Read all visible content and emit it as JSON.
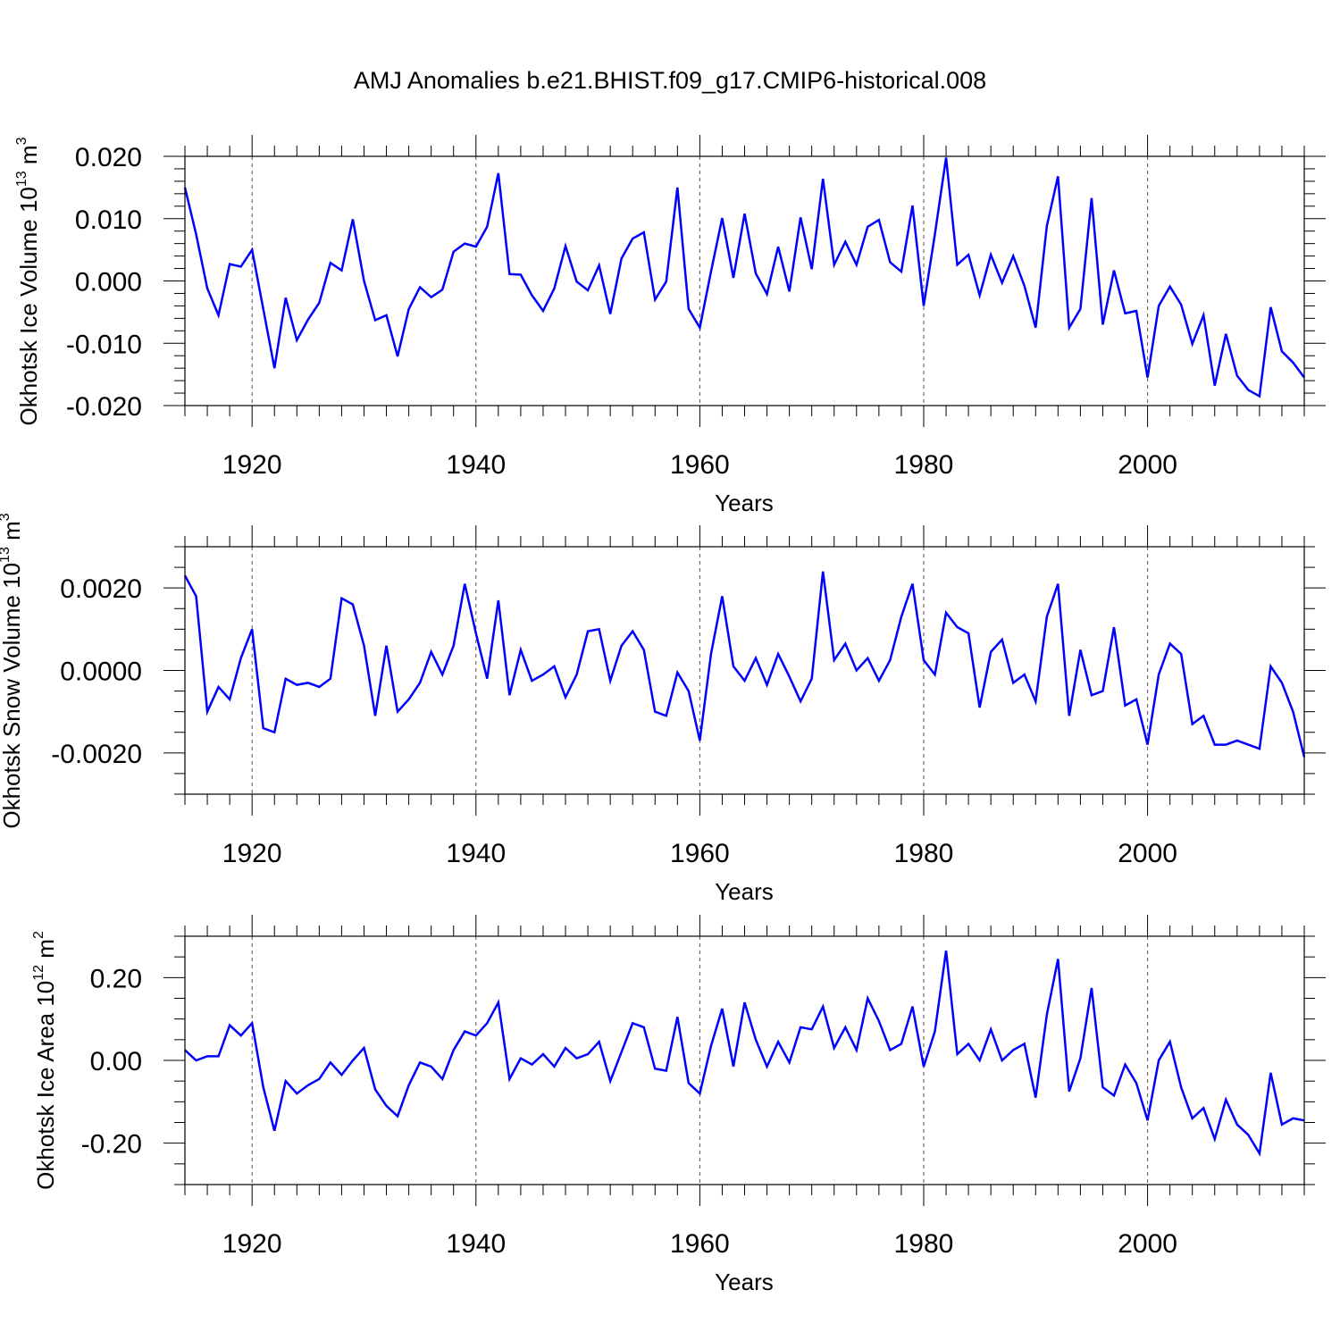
{
  "figure_title": "AMJ Anomalies b.e21.BHIST.f09_g17.CMIP6-historical.008",
  "line_color": "#0000ff",
  "chart_data": [
    {
      "type": "line",
      "name": "ice-volume",
      "ylabel_main": "Okhotsk Ice Volume 10",
      "ylabel_exp": "13",
      "ylabel_unit": " m",
      "ylabel_unit_exp": "3",
      "xlabel": "Years",
      "xlim": [
        1914,
        2014
      ],
      "ylim": [
        -0.02,
        0.02
      ],
      "x_ticks": [
        1920,
        1940,
        1960,
        1980,
        2000
      ],
      "x_tick_labels": [
        "1920",
        "1940",
        "1960",
        "1980",
        "2000"
      ],
      "y_ticks": [
        -0.02,
        -0.01,
        0.0,
        0.01,
        0.02
      ],
      "y_tick_labels": [
        "-0.020",
        "-0.010",
        "0.000",
        "0.010",
        "0.020"
      ],
      "y_minor_step": 0.002,
      "x_start": 1914,
      "values": [
        0.015,
        0.0075,
        -0.0012,
        -0.0055,
        0.0027,
        0.0023,
        0.005,
        -0.0045,
        -0.014,
        -0.0027,
        -0.0095,
        -0.0062,
        -0.0035,
        0.0029,
        0.0017,
        0.0099,
        0.0,
        -0.0063,
        -0.0055,
        -0.0121,
        -0.0045,
        -0.001,
        -0.0026,
        -0.0014,
        0.0047,
        0.006,
        0.0055,
        0.0087,
        0.0173,
        0.0011,
        0.001,
        -0.0023,
        -0.0048,
        -0.0012,
        0.0056,
        -0.0001,
        -0.0015,
        0.0025,
        -0.0053,
        0.0036,
        0.0068,
        0.0078,
        -0.003,
        -0.0001,
        0.015,
        -0.0045,
        -0.0075,
        0.0015,
        0.0101,
        0.0005,
        0.0108,
        0.0012,
        -0.0021,
        0.0055,
        -0.0017,
        0.0102,
        0.0019,
        0.0164,
        0.0026,
        0.0063,
        0.0026,
        0.0087,
        0.0098,
        0.003,
        0.0015,
        0.0121,
        -0.004,
        0.0075,
        0.0198,
        0.0026,
        0.0042,
        -0.0023,
        0.0042,
        -0.0003,
        0.004,
        -0.0008,
        -0.0075,
        0.0088,
        0.0168,
        -0.0075,
        -0.0045,
        0.0133,
        -0.007,
        0.0017,
        -0.0052,
        -0.0048,
        -0.0155,
        -0.004,
        -0.0009,
        -0.0038,
        -0.0101,
        -0.0055,
        -0.0168,
        -0.0085,
        -0.0152,
        -0.0175,
        -0.0185,
        -0.0042,
        -0.0113,
        -0.0131,
        -0.0155
      ]
    },
    {
      "type": "line",
      "name": "snow-volume",
      "ylabel_main": "Okhotsk Snow Volume 10",
      "ylabel_exp": "13",
      "ylabel_unit": " m",
      "ylabel_unit_exp": "3",
      "xlabel": "Years",
      "xlim": [
        1914,
        2014
      ],
      "ylim": [
        -0.003,
        0.003
      ],
      "x_ticks": [
        1920,
        1940,
        1960,
        1980,
        2000
      ],
      "x_tick_labels": [
        "1920",
        "1940",
        "1960",
        "1980",
        "2000"
      ],
      "y_ticks": [
        -0.002,
        0.0,
        0.002
      ],
      "y_tick_labels": [
        "-0.0020",
        "0.0000",
        "0.0020"
      ],
      "y_minor_step": 0.0005,
      "x_start": 1914,
      "values": [
        0.0023,
        0.0018,
        -0.001,
        -0.0004,
        -0.0007,
        0.0003,
        0.001,
        -0.0014,
        -0.0015,
        -0.0002,
        -0.00035,
        -0.0003,
        -0.0004,
        -0.0002,
        0.00175,
        0.0016,
        0.0006,
        -0.0011,
        0.0006,
        -0.001,
        -0.0007,
        -0.0003,
        0.00045,
        -0.0001,
        0.0006,
        0.0021,
        0.0009,
        -0.0002,
        0.0017,
        -0.0006,
        0.0005,
        -0.00025,
        -0.0001,
        0.0001,
        -0.00065,
        -0.0001,
        0.00095,
        0.001,
        -0.00025,
        0.0006,
        0.00095,
        0.0005,
        -0.001,
        -0.0011,
        -5e-05,
        -0.0005,
        -0.0017,
        0.0004,
        0.0018,
        0.0001,
        -0.00025,
        0.0003,
        -0.00035,
        0.0004,
        -0.00015,
        -0.00075,
        -0.0002,
        0.0024,
        0.00025,
        0.00065,
        0.0,
        0.0003,
        -0.00025,
        0.00025,
        0.0013,
        0.0021,
        0.00025,
        -0.0001,
        0.0014,
        0.00105,
        0.0009,
        -0.0009,
        0.00045,
        0.00075,
        -0.0003,
        -0.0001,
        -0.00075,
        0.0013,
        0.0021,
        -0.0011,
        0.0005,
        -0.0006,
        -0.0005,
        0.00105,
        -0.00085,
        -0.0007,
        -0.0018,
        -0.0001,
        0.00065,
        0.0004,
        -0.0013,
        -0.0011,
        -0.0018,
        -0.0018,
        -0.0017,
        -0.0018,
        -0.0019,
        0.0001,
        -0.0003,
        -0.001,
        -0.0021
      ]
    },
    {
      "type": "line",
      "name": "ice-area",
      "ylabel_main": "Okhotsk Ice Area 10",
      "ylabel_exp": "12",
      "ylabel_unit": " m",
      "ylabel_unit_exp": "2",
      "xlabel": "Years",
      "xlim": [
        1914,
        2014
      ],
      "ylim": [
        -0.3,
        0.3
      ],
      "x_ticks": [
        1920,
        1940,
        1960,
        1980,
        2000
      ],
      "x_tick_labels": [
        "1920",
        "1940",
        "1960",
        "1980",
        "2000"
      ],
      "y_ticks": [
        -0.2,
        0.0,
        0.2
      ],
      "y_tick_labels": [
        "-0.20",
        "0.00",
        "0.20"
      ],
      "y_minor_step": 0.05,
      "x_start": 1914,
      "values": [
        0.025,
        0.0,
        0.01,
        0.01,
        0.085,
        0.06,
        0.09,
        -0.065,
        -0.17,
        -0.05,
        -0.08,
        -0.06,
        -0.045,
        -0.005,
        -0.035,
        0.0,
        0.03,
        -0.07,
        -0.11,
        -0.135,
        -0.06,
        -0.005,
        -0.015,
        -0.045,
        0.025,
        0.07,
        0.06,
        0.09,
        0.14,
        -0.045,
        0.005,
        -0.01,
        0.015,
        -0.015,
        0.03,
        0.005,
        0.015,
        0.045,
        -0.05,
        0.02,
        0.09,
        0.08,
        -0.02,
        -0.025,
        0.105,
        -0.055,
        -0.08,
        0.035,
        0.125,
        -0.015,
        0.14,
        0.05,
        -0.015,
        0.045,
        -0.005,
        0.08,
        0.075,
        0.13,
        0.03,
        0.08,
        0.025,
        0.15,
        0.095,
        0.025,
        0.04,
        0.13,
        -0.015,
        0.07,
        0.265,
        0.015,
        0.04,
        0.0,
        0.075,
        0.0,
        0.025,
        0.04,
        -0.09,
        0.11,
        0.245,
        -0.075,
        0.005,
        0.175,
        -0.065,
        -0.085,
        -0.01,
        -0.055,
        -0.145,
        0.0,
        0.045,
        -0.065,
        -0.14,
        -0.115,
        -0.19,
        -0.095,
        -0.155,
        -0.18,
        -0.225,
        -0.03,
        -0.155,
        -0.14,
        -0.145
      ]
    }
  ]
}
